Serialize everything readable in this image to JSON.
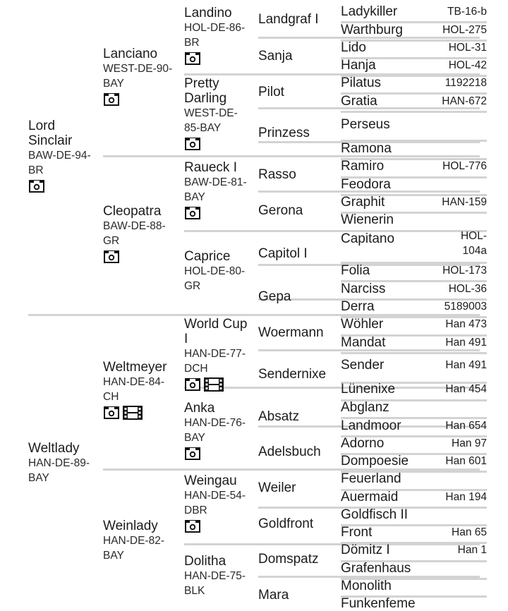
{
  "gen1": [
    {
      "name": "Lord Sinclair",
      "reg": "BAW-DE-94-BR",
      "icons": [
        "camera-icon"
      ]
    },
    {
      "name": "Weltlady",
      "reg": "HAN-DE-89-BAY",
      "icons": []
    }
  ],
  "gen2": [
    {
      "name": "Lanciano",
      "reg": "WEST-DE-90-BAY",
      "icons": [
        "camera-icon"
      ]
    },
    {
      "name": "Cleopatra",
      "reg": "BAW-DE-88-GR",
      "icons": [
        "camera-icon"
      ]
    },
    {
      "name": "Weltmeyer",
      "reg": "HAN-DE-84-CH",
      "icons": [
        "camera-icon",
        "film-icon"
      ]
    },
    {
      "name": "Weinlady",
      "reg": "HAN-DE-82-BAY",
      "icons": []
    }
  ],
  "gen3": [
    {
      "name": "Landino",
      "reg": "HOL-DE-86-BR",
      "icons": [
        "camera-icon"
      ]
    },
    {
      "name": "Pretty Darling",
      "reg": "WEST-DE-85-BAY",
      "icons": [
        "camera-icon"
      ]
    },
    {
      "name": "Raueck I",
      "reg": "BAW-DE-81-BAY",
      "icons": [
        "camera-icon"
      ]
    },
    {
      "name": "Caprice",
      "reg": "HOL-DE-80-GR",
      "icons": []
    },
    {
      "name": "World Cup I",
      "reg": "HAN-DE-77-DCH",
      "icons": [
        "camera-icon",
        "film-icon"
      ]
    },
    {
      "name": "Anka",
      "reg": "HAN-DE-76-BAY",
      "icons": [
        "camera-icon"
      ]
    },
    {
      "name": "Weingau",
      "reg": "HAN-DE-54-DBR",
      "icons": [
        "camera-icon"
      ]
    },
    {
      "name": "Dolitha",
      "reg": "HAN-DE-75-BLK",
      "icons": []
    }
  ],
  "gen4": [
    "Landgraf I",
    "Sanja",
    "Pilot",
    "Prinzess",
    "Rasso",
    "Gerona",
    "Capitol I",
    "Gepa",
    "Woermann",
    "Sendernixe",
    "Absatz",
    "Adelsbuch",
    "Weiler",
    "Goldfront",
    "Domspatz",
    "Mara"
  ],
  "gen5": [
    {
      "name": "Ladykiller",
      "reg": "TB-16-b"
    },
    {
      "name": "Warthburg",
      "reg": "HOL-275"
    },
    {
      "name": "Lido",
      "reg": "HOL-31"
    },
    {
      "name": "Hanja",
      "reg": "HOL-42"
    },
    {
      "name": "Pilatus",
      "reg": "1192218"
    },
    {
      "name": "Gratia",
      "reg": "HAN-672"
    },
    {
      "name": "Perseus",
      "reg": ""
    },
    {
      "name": "Ramona",
      "reg": ""
    },
    {
      "name": "Ramiro",
      "reg": "HOL-776"
    },
    {
      "name": "Feodora",
      "reg": ""
    },
    {
      "name": "Graphit",
      "reg": "HAN-159"
    },
    {
      "name": "Wienerin",
      "reg": ""
    },
    {
      "name": "Capitano",
      "reg": "HOL-104a"
    },
    {
      "name": "Folia",
      "reg": "HOL-173"
    },
    {
      "name": "Narciss",
      "reg": "HOL-36"
    },
    {
      "name": "Derra",
      "reg": "5189003"
    },
    {
      "name": "Wöhler",
      "reg": "Han 473"
    },
    {
      "name": "Mandat",
      "reg": "Han 491"
    },
    {
      "name": "Sender",
      "reg": "Han 491"
    },
    {
      "name": "Lünenixe",
      "reg": "Han 454"
    },
    {
      "name": "Abglanz",
      "reg": ""
    },
    {
      "name": "Landmoor",
      "reg": "Han 654"
    },
    {
      "name": "Adorno",
      "reg": "Han 97"
    },
    {
      "name": "Dompoesie",
      "reg": "Han 601"
    },
    {
      "name": "Feuerland",
      "reg": ""
    },
    {
      "name": "Auermaid",
      "reg": "Han 194"
    },
    {
      "name": "Goldfisch II",
      "reg": ""
    },
    {
      "name": "Front",
      "reg": "Han 65"
    },
    {
      "name": "Dömitz I",
      "reg": "Han 1"
    },
    {
      "name": "Grafenhaus",
      "reg": ""
    },
    {
      "name": "Monolith",
      "reg": ""
    },
    {
      "name": "Funkenfeme",
      "reg": ""
    }
  ]
}
